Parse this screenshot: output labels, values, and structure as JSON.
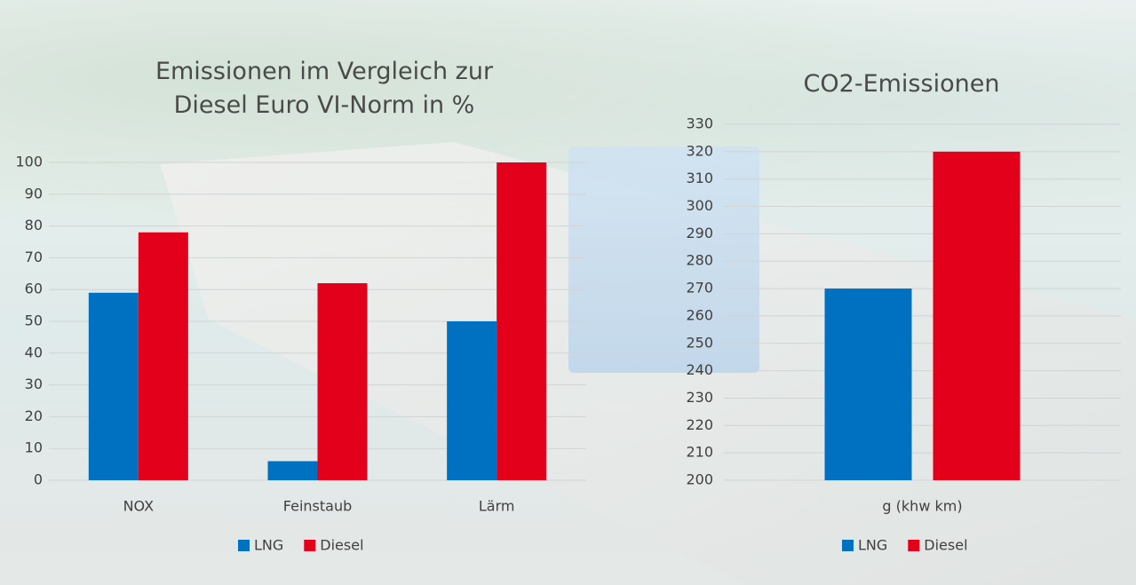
{
  "chart_data": [
    {
      "type": "bar",
      "title": "Emissionen im Vergleich zur Diesel Euro VI-Norm in %",
      "categories": [
        "NOX",
        "Feinstaub",
        "Lärm"
      ],
      "series": [
        {
          "name": "LNG",
          "color": "#0070c0",
          "values": [
            59,
            6,
            50
          ]
        },
        {
          "name": "Diesel",
          "color": "#e3001b",
          "values": [
            78,
            62,
            100
          ]
        }
      ],
      "ylim": [
        0,
        100
      ],
      "yticks": [
        0,
        10,
        20,
        30,
        40,
        50,
        60,
        70,
        80,
        90,
        100
      ],
      "grid": true,
      "legend": "bottom"
    },
    {
      "type": "bar",
      "title": "CO2-Emissionen",
      "categories": [
        "g (khw km)"
      ],
      "series": [
        {
          "name": "LNG",
          "color": "#0070c0",
          "values": [
            270
          ]
        },
        {
          "name": "Diesel",
          "color": "#e3001b",
          "values": [
            320
          ]
        }
      ],
      "ylim": [
        200,
        330
      ],
      "yticks": [
        200,
        210,
        220,
        230,
        240,
        250,
        260,
        270,
        280,
        290,
        300,
        310,
        320,
        330
      ],
      "grid": true,
      "legend": "bottom"
    }
  ]
}
